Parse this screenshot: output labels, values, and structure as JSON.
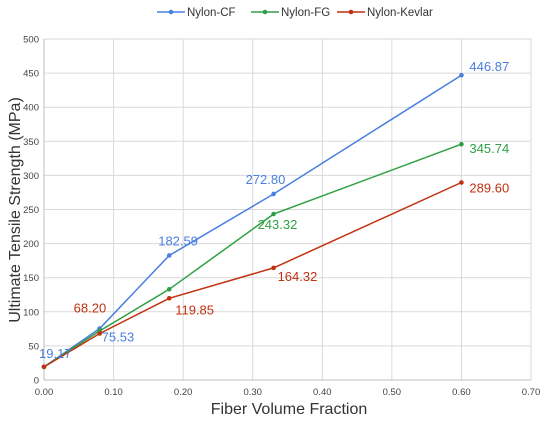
{
  "chart_data": {
    "type": "line",
    "xlabel": "Fiber Volume Fraction",
    "ylabel": "Ultimate Tensile Strength (MPa)",
    "xlim": [
      0,
      0.7
    ],
    "ylim": [
      0,
      500
    ],
    "x_ticks": [
      "0.00",
      "0.10",
      "0.20",
      "0.30",
      "0.40",
      "0.50",
      "0.60",
      "0.70"
    ],
    "y_ticks": [
      "0",
      "50",
      "100",
      "150",
      "200",
      "250",
      "300",
      "350",
      "400",
      "450",
      "500"
    ],
    "grid": true,
    "legend_position": "top",
    "series": [
      {
        "name": "Nylon-CF",
        "color": "#4a7fe0",
        "x": [
          0.0,
          0.08,
          0.18,
          0.33,
          0.6
        ],
        "y": [
          19.17,
          75.53,
          182.59,
          272.8,
          446.87
        ]
      },
      {
        "name": "Nylon-FG",
        "color": "#2ea043",
        "x": [
          0.0,
          0.08,
          0.18,
          0.33,
          0.6
        ],
        "y": [
          19.17,
          72,
          133,
          243.32,
          345.74
        ]
      },
      {
        "name": "Nylon-Kevlar",
        "color": "#c0310f",
        "x": [
          0.0,
          0.08,
          0.18,
          0.33,
          0.6
        ],
        "y": [
          19.17,
          68.2,
          119.85,
          164.32,
          289.6
        ]
      }
    ],
    "annotations": [
      {
        "text": "19.17",
        "color": "#4a7fe0"
      },
      {
        "text": "75.53",
        "color": "#4a7fe0"
      },
      {
        "text": "182.59",
        "color": "#4a7fe0"
      },
      {
        "text": "272.80",
        "color": "#4a7fe0"
      },
      {
        "text": "446.87",
        "color": "#4a7fe0"
      },
      {
        "text": "243.32",
        "color": "#2ea043"
      },
      {
        "text": "345.74",
        "color": "#2ea043"
      },
      {
        "text": "68.20",
        "color": "#c0310f"
      },
      {
        "text": "119.85",
        "color": "#c0310f"
      },
      {
        "text": "164.32",
        "color": "#c0310f"
      },
      {
        "text": "289.60",
        "color": "#c0310f"
      }
    ]
  }
}
